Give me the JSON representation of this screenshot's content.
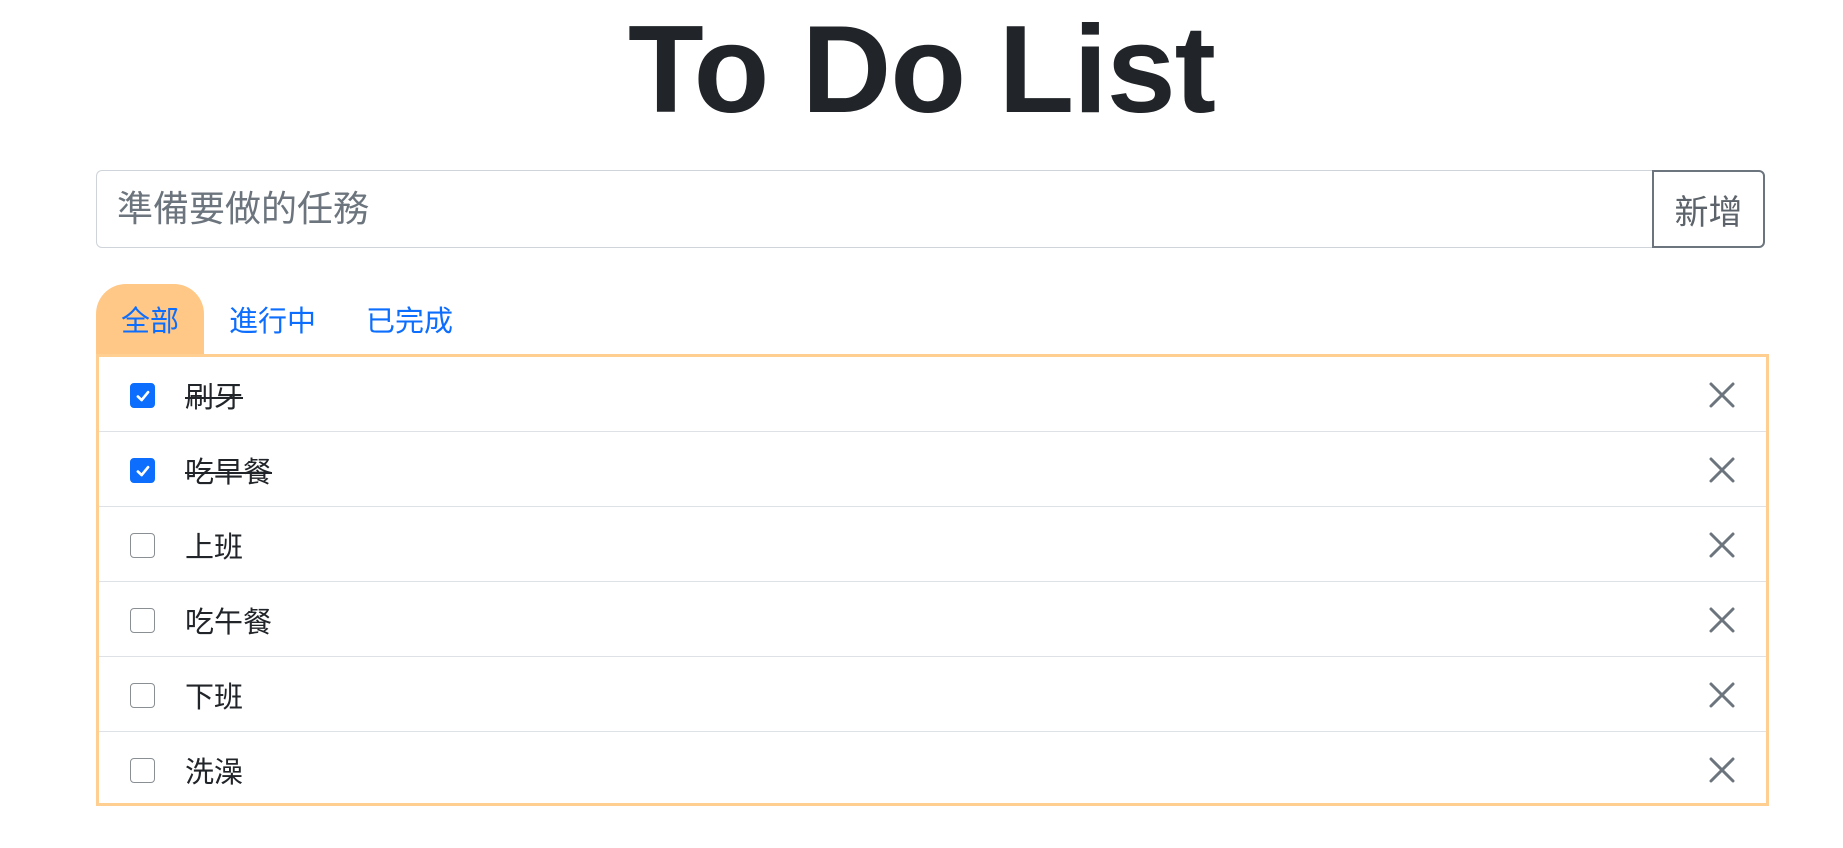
{
  "title": "To Do List",
  "input": {
    "placeholder": "準備要做的任務",
    "value": ""
  },
  "add_button_label": "新增",
  "tabs": [
    {
      "label": "全部",
      "active": true
    },
    {
      "label": "進行中",
      "active": false
    },
    {
      "label": "已完成",
      "active": false
    }
  ],
  "todos": [
    {
      "label": "刷牙",
      "done": true
    },
    {
      "label": "吃早餐",
      "done": true
    },
    {
      "label": "上班",
      "done": false
    },
    {
      "label": "吃午餐",
      "done": false
    },
    {
      "label": "下班",
      "done": false
    },
    {
      "label": "洗澡",
      "done": false
    }
  ],
  "icons": {
    "checkbox": "check-icon",
    "delete": "close-icon"
  },
  "colors": {
    "accent": "#0d6efd",
    "active_tab": "#ffc886",
    "panel_border": "#ffcf92",
    "delete_icon": "#6c757d"
  }
}
